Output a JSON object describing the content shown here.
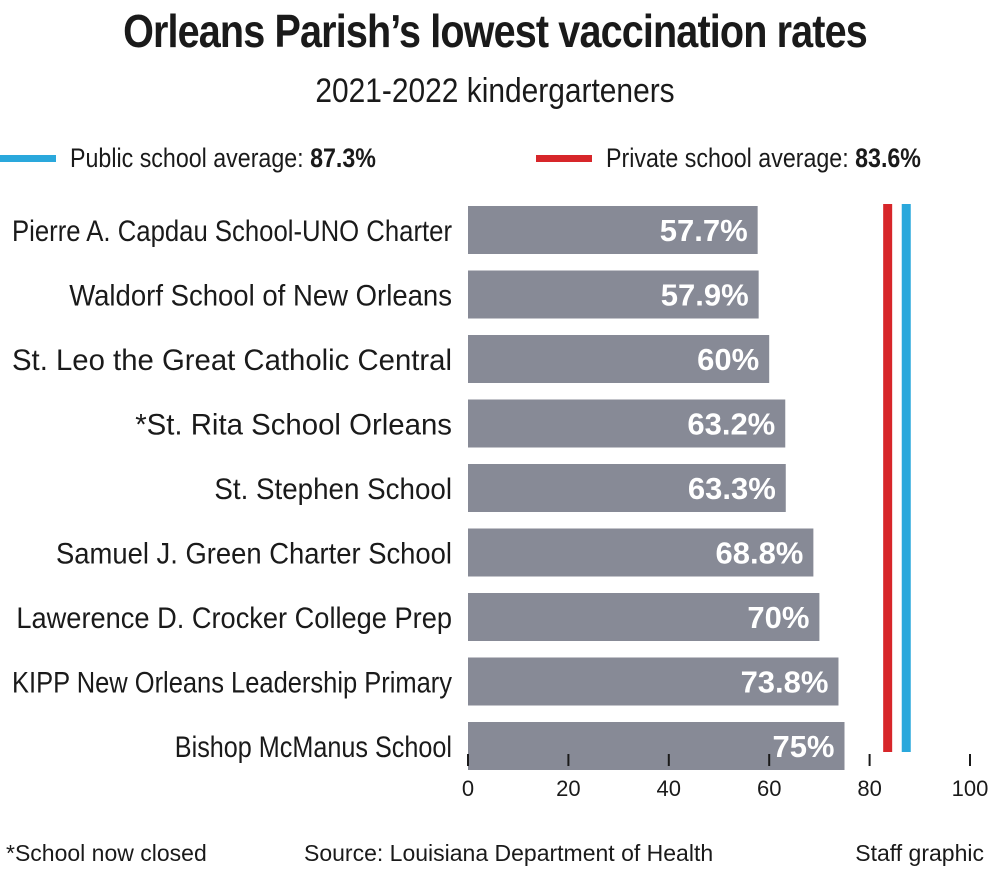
{
  "title": "Orleans Parish’s lowest vaccination rates",
  "subtitle": "2021-2022 kindergarteners",
  "legend": {
    "public": {
      "label": "Public school average:",
      "value_text": "87.3%",
      "value": 87.3,
      "color": "#2aa8dc"
    },
    "private": {
      "label": "Private school average:",
      "value_text": "83.6%",
      "value": 83.6,
      "color": "#d7262a"
    }
  },
  "chart_data": {
    "type": "bar",
    "orientation": "horizontal",
    "categories": [
      "Pierre A. Capdau School-UNO Charter",
      "Waldorf School of New Orleans",
      "St. Leo the Great Catholic Central",
      "*St. Rita School Orleans",
      "St. Stephen School",
      "Samuel J. Green Charter School",
      "Lawerence D. Crocker College Prep",
      "KIPP New Orleans Leadership Primary",
      "Bishop McManus School"
    ],
    "values": [
      57.7,
      57.9,
      60,
      63.2,
      63.3,
      68.8,
      70,
      73.8,
      75
    ],
    "value_labels": [
      "57.7%",
      "57.9%",
      "60%",
      "63.2%",
      "63.3%",
      "68.8%",
      "70%",
      "73.8%",
      "75%"
    ],
    "xlim": [
      0,
      100
    ],
    "xticks": [
      0,
      20,
      40,
      60,
      80,
      100
    ],
    "reference_lines": [
      {
        "name": "Public school average",
        "value": 87.3,
        "color": "#2aa8dc"
      },
      {
        "name": "Private school average",
        "value": 83.6,
        "color": "#d7262a"
      }
    ],
    "bar_color": "#878a96",
    "grid": false
  },
  "footer": {
    "footnote": "*School now closed",
    "source": "Source: Louisiana Department of Health",
    "credit": "Staff graphic"
  }
}
